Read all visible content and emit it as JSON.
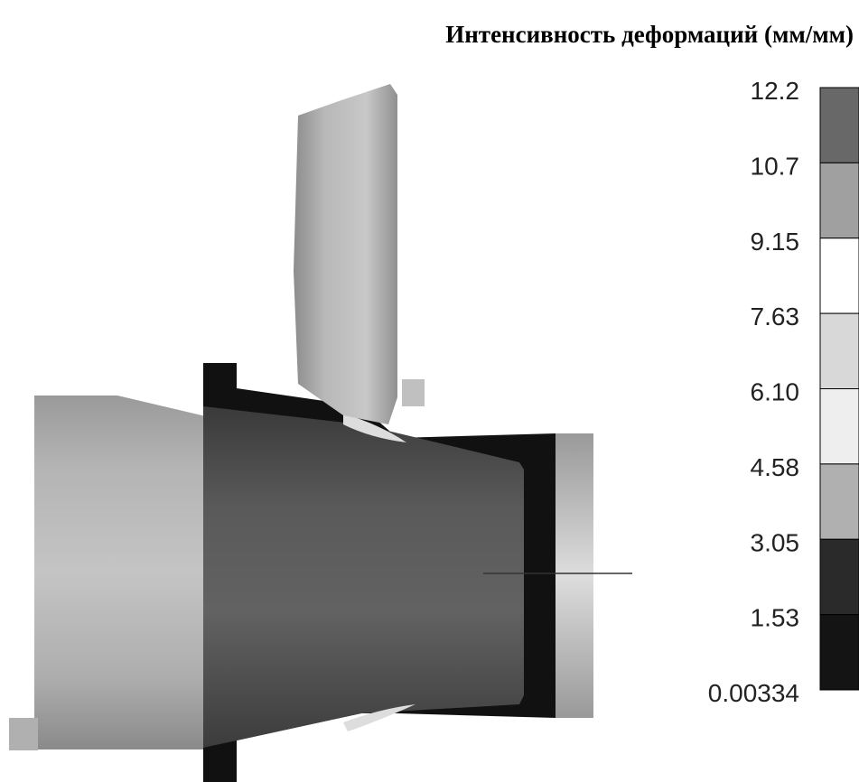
{
  "header": {
    "title": "Интенсивность деформаций (мм/мм)"
  },
  "legend": {
    "labels": [
      "12.2",
      "10.7",
      "9.15",
      "7.63",
      "6.10",
      "4.58",
      "3.05",
      "1.53",
      "0.00334"
    ]
  }
}
